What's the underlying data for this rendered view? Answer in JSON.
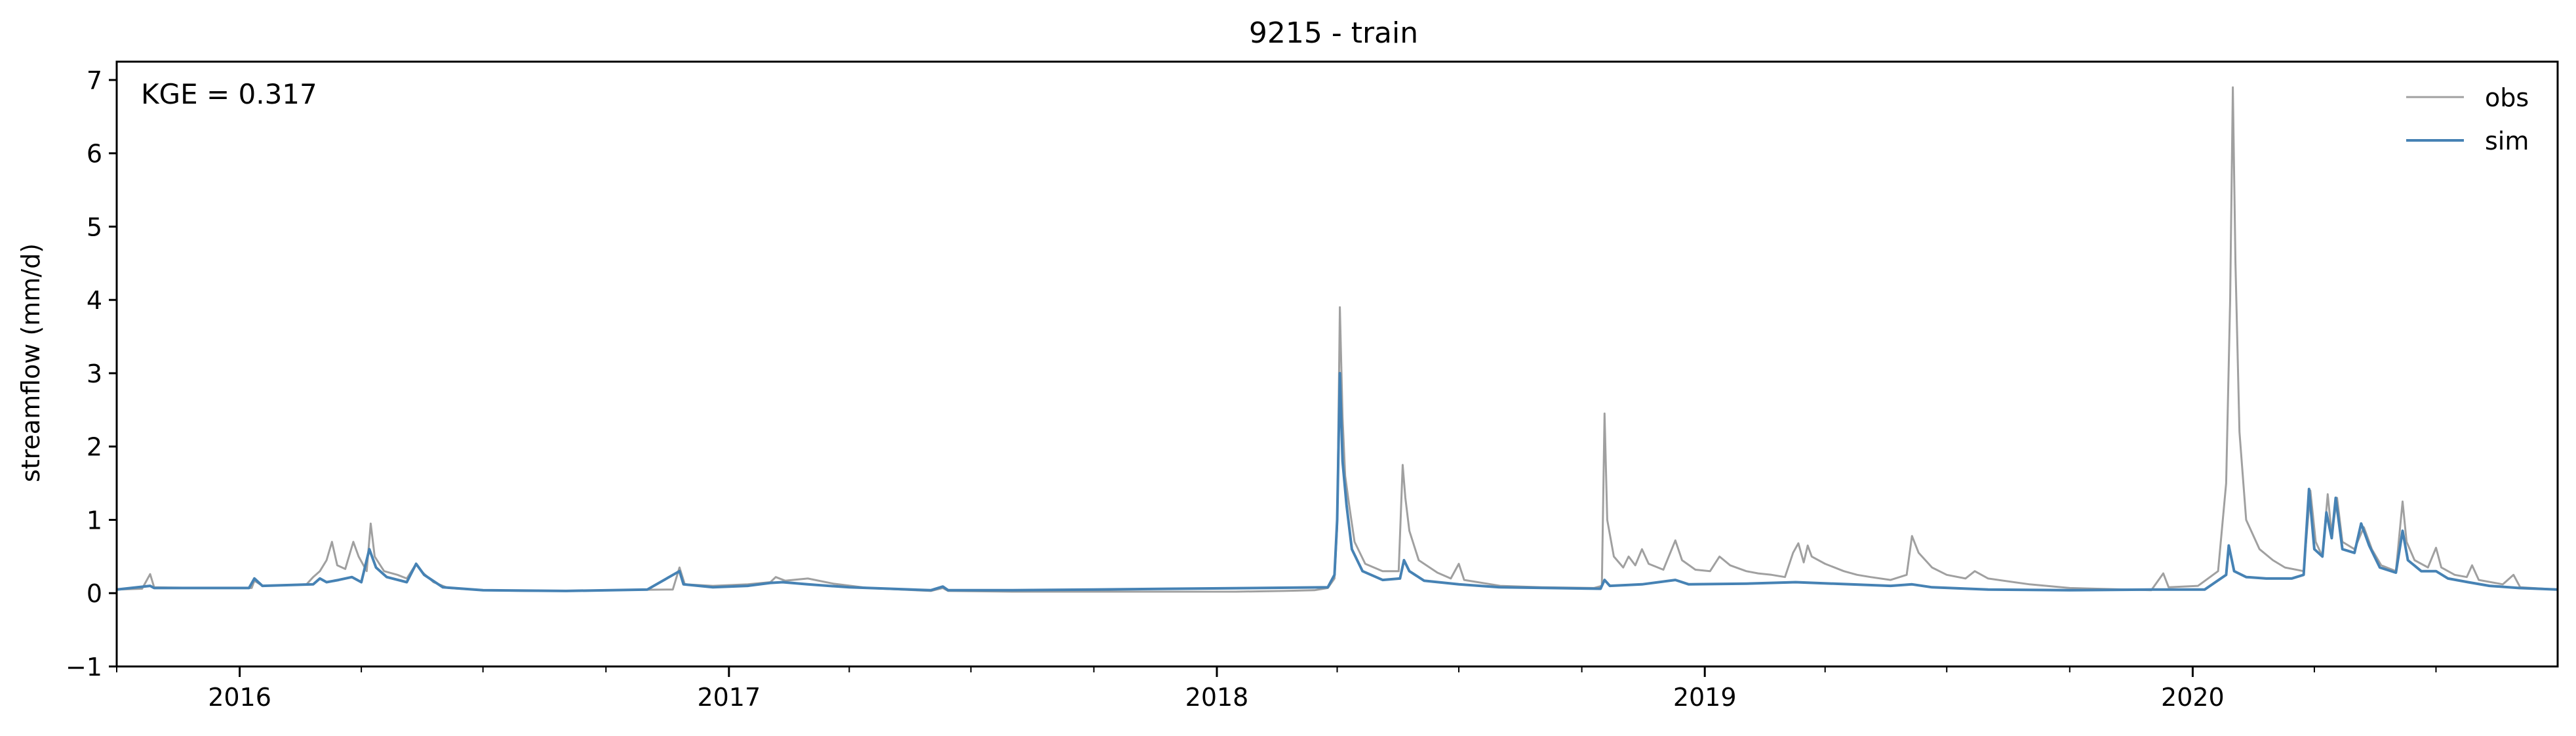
{
  "chart_data": {
    "type": "line",
    "title": "9215 - train",
    "xlabel": "",
    "ylabel": "streamflow (mm/d)",
    "xlim": [
      "2015-10-01",
      "2020-09-30"
    ],
    "ylim": [
      -1,
      7.25
    ],
    "yticks": [
      -1,
      0,
      1,
      2,
      3,
      4,
      5,
      6,
      7
    ],
    "xticks": [
      {
        "date": "2016-01-01",
        "label": "2016"
      },
      {
        "date": "2017-01-01",
        "label": "2017"
      },
      {
        "date": "2018-01-01",
        "label": "2018"
      },
      {
        "date": "2019-01-01",
        "label": "2019"
      },
      {
        "date": "2020-01-01",
        "label": "2020"
      }
    ],
    "annotation": "KGE = 0.317",
    "legend_position": "top-right",
    "grid": false,
    "series": [
      {
        "name": "obs",
        "color": "#a0a0a0",
        "points": [
          [
            "2015-10-01",
            0.05
          ],
          [
            "2015-10-20",
            0.06
          ],
          [
            "2015-10-26",
            0.26
          ],
          [
            "2015-10-29",
            0.08
          ],
          [
            "2015-12-01",
            0.07
          ],
          [
            "2016-01-10",
            0.07
          ],
          [
            "2016-01-12",
            0.17
          ],
          [
            "2016-01-18",
            0.1
          ],
          [
            "2016-02-20",
            0.12
          ],
          [
            "2016-02-25",
            0.22
          ],
          [
            "2016-03-01",
            0.3
          ],
          [
            "2016-03-06",
            0.45
          ],
          [
            "2016-03-10",
            0.7
          ],
          [
            "2016-03-14",
            0.38
          ],
          [
            "2016-03-20",
            0.33
          ],
          [
            "2016-03-26",
            0.7
          ],
          [
            "2016-03-30",
            0.5
          ],
          [
            "2016-04-05",
            0.3
          ],
          [
            "2016-04-08",
            0.95
          ],
          [
            "2016-04-11",
            0.5
          ],
          [
            "2016-04-18",
            0.3
          ],
          [
            "2016-04-28",
            0.25
          ],
          [
            "2016-05-05",
            0.2
          ],
          [
            "2016-05-12",
            0.4
          ],
          [
            "2016-05-17",
            0.28
          ],
          [
            "2016-05-25",
            0.15
          ],
          [
            "2016-06-05",
            0.07
          ],
          [
            "2016-07-01",
            0.04
          ],
          [
            "2016-08-01",
            0.03
          ],
          [
            "2016-09-01",
            0.03
          ],
          [
            "2016-10-01",
            0.04
          ],
          [
            "2016-11-20",
            0.05
          ],
          [
            "2016-11-25",
            0.35
          ],
          [
            "2016-11-29",
            0.12
          ],
          [
            "2016-12-20",
            0.1
          ],
          [
            "2017-01-15",
            0.12
          ],
          [
            "2017-02-01",
            0.15
          ],
          [
            "2017-02-05",
            0.22
          ],
          [
            "2017-02-12",
            0.17
          ],
          [
            "2017-03-01",
            0.2
          ],
          [
            "2017-03-20",
            0.13
          ],
          [
            "2017-04-15",
            0.07
          ],
          [
            "2017-06-01",
            0.03
          ],
          [
            "2017-06-10",
            0.07
          ],
          [
            "2017-06-14",
            0.03
          ],
          [
            "2017-08-01",
            0.02
          ],
          [
            "2017-10-01",
            0.02
          ],
          [
            "2017-12-01",
            0.02
          ],
          [
            "2018-01-15",
            0.02
          ],
          [
            "2018-02-20",
            0.03
          ],
          [
            "2018-03-15",
            0.04
          ],
          [
            "2018-03-25",
            0.07
          ],
          [
            "2018-03-30",
            0.2
          ],
          [
            "2018-04-01",
            0.9
          ],
          [
            "2018-04-03",
            3.9
          ],
          [
            "2018-04-05",
            2.4
          ],
          [
            "2018-04-07",
            1.6
          ],
          [
            "2018-04-10",
            1.2
          ],
          [
            "2018-04-14",
            0.7
          ],
          [
            "2018-04-22",
            0.4
          ],
          [
            "2018-05-05",
            0.3
          ],
          [
            "2018-05-17",
            0.3
          ],
          [
            "2018-05-20",
            1.75
          ],
          [
            "2018-05-22",
            1.3
          ],
          [
            "2018-05-25",
            0.85
          ],
          [
            "2018-06-01",
            0.45
          ],
          [
            "2018-06-15",
            0.28
          ],
          [
            "2018-06-25",
            0.2
          ],
          [
            "2018-07-01",
            0.4
          ],
          [
            "2018-07-05",
            0.18
          ],
          [
            "2018-08-01",
            0.1
          ],
          [
            "2018-09-01",
            0.08
          ],
          [
            "2018-10-10",
            0.07
          ],
          [
            "2018-10-16",
            0.1
          ],
          [
            "2018-10-18",
            2.45
          ],
          [
            "2018-10-20",
            1.0
          ],
          [
            "2018-10-25",
            0.5
          ],
          [
            "2018-11-01",
            0.35
          ],
          [
            "2018-11-05",
            0.5
          ],
          [
            "2018-11-10",
            0.38
          ],
          [
            "2018-11-15",
            0.6
          ],
          [
            "2018-11-20",
            0.4
          ],
          [
            "2018-12-01",
            0.32
          ],
          [
            "2018-12-10",
            0.72
          ],
          [
            "2018-12-15",
            0.45
          ],
          [
            "2018-12-25",
            0.32
          ],
          [
            "2019-01-05",
            0.3
          ],
          [
            "2019-01-12",
            0.5
          ],
          [
            "2019-01-20",
            0.38
          ],
          [
            "2019-02-01",
            0.3
          ],
          [
            "2019-02-10",
            0.27
          ],
          [
            "2019-02-20",
            0.25
          ],
          [
            "2019-03-02",
            0.22
          ],
          [
            "2019-03-08",
            0.55
          ],
          [
            "2019-03-12",
            0.68
          ],
          [
            "2019-03-16",
            0.42
          ],
          [
            "2019-03-19",
            0.65
          ],
          [
            "2019-03-22",
            0.5
          ],
          [
            "2019-04-01",
            0.4
          ],
          [
            "2019-04-15",
            0.3
          ],
          [
            "2019-04-25",
            0.25
          ],
          [
            "2019-05-05",
            0.22
          ],
          [
            "2019-05-20",
            0.18
          ],
          [
            "2019-06-01",
            0.25
          ],
          [
            "2019-06-05",
            0.78
          ],
          [
            "2019-06-10",
            0.55
          ],
          [
            "2019-06-20",
            0.35
          ],
          [
            "2019-07-01",
            0.25
          ],
          [
            "2019-07-15",
            0.2
          ],
          [
            "2019-07-22",
            0.3
          ],
          [
            "2019-08-01",
            0.2
          ],
          [
            "2019-09-01",
            0.12
          ],
          [
            "2019-10-01",
            0.07
          ],
          [
            "2019-12-01",
            0.04
          ],
          [
            "2019-12-10",
            0.27
          ],
          [
            "2019-12-14",
            0.08
          ],
          [
            "2020-01-05",
            0.1
          ],
          [
            "2020-01-20",
            0.3
          ],
          [
            "2020-01-26",
            1.5
          ],
          [
            "2020-01-29",
            4.0
          ],
          [
            "2020-01-31",
            6.9
          ],
          [
            "2020-02-02",
            4.5
          ],
          [
            "2020-02-05",
            2.2
          ],
          [
            "2020-02-10",
            1.0
          ],
          [
            "2020-02-20",
            0.6
          ],
          [
            "2020-03-01",
            0.45
          ],
          [
            "2020-03-10",
            0.35
          ],
          [
            "2020-03-24",
            0.3
          ],
          [
            "2020-03-29",
            1.4
          ],
          [
            "2020-04-02",
            0.7
          ],
          [
            "2020-04-07",
            0.5
          ],
          [
            "2020-04-11",
            1.35
          ],
          [
            "2020-04-14",
            0.8
          ],
          [
            "2020-04-18",
            1.3
          ],
          [
            "2020-04-22",
            0.7
          ],
          [
            "2020-05-01",
            0.6
          ],
          [
            "2020-05-08",
            0.9
          ],
          [
            "2020-05-14",
            0.6
          ],
          [
            "2020-05-21",
            0.38
          ],
          [
            "2020-06-01",
            0.3
          ],
          [
            "2020-06-06",
            1.25
          ],
          [
            "2020-06-09",
            0.7
          ],
          [
            "2020-06-15",
            0.45
          ],
          [
            "2020-06-25",
            0.35
          ],
          [
            "2020-07-01",
            0.62
          ],
          [
            "2020-07-05",
            0.35
          ],
          [
            "2020-07-15",
            0.25
          ],
          [
            "2020-07-24",
            0.22
          ],
          [
            "2020-07-28",
            0.38
          ],
          [
            "2020-08-02",
            0.18
          ],
          [
            "2020-08-20",
            0.12
          ],
          [
            "2020-08-28",
            0.25
          ],
          [
            "2020-09-02",
            0.08
          ],
          [
            "2020-09-30",
            0.05
          ]
        ]
      },
      {
        "name": "sim",
        "color": "#4682b4",
        "points": [
          [
            "2015-10-01",
            0.05
          ],
          [
            "2015-10-26",
            0.1
          ],
          [
            "2015-10-29",
            0.07
          ],
          [
            "2016-01-08",
            0.07
          ],
          [
            "2016-01-12",
            0.2
          ],
          [
            "2016-01-18",
            0.1
          ],
          [
            "2016-02-25",
            0.12
          ],
          [
            "2016-03-01",
            0.2
          ],
          [
            "2016-03-06",
            0.15
          ],
          [
            "2016-03-15",
            0.18
          ],
          [
            "2016-03-25",
            0.22
          ],
          [
            "2016-04-01",
            0.15
          ],
          [
            "2016-04-07",
            0.6
          ],
          [
            "2016-04-12",
            0.35
          ],
          [
            "2016-04-20",
            0.22
          ],
          [
            "2016-05-05",
            0.15
          ],
          [
            "2016-05-12",
            0.4
          ],
          [
            "2016-05-18",
            0.25
          ],
          [
            "2016-06-01",
            0.08
          ],
          [
            "2016-07-01",
            0.04
          ],
          [
            "2016-09-01",
            0.03
          ],
          [
            "2016-11-01",
            0.05
          ],
          [
            "2016-11-25",
            0.3
          ],
          [
            "2016-11-28",
            0.12
          ],
          [
            "2016-12-20",
            0.08
          ],
          [
            "2017-01-15",
            0.1
          ],
          [
            "2017-02-01",
            0.14
          ],
          [
            "2017-02-10",
            0.15
          ],
          [
            "2017-03-01",
            0.12
          ],
          [
            "2017-04-01",
            0.08
          ],
          [
            "2017-06-01",
            0.04
          ],
          [
            "2017-06-10",
            0.09
          ],
          [
            "2017-06-14",
            0.04
          ],
          [
            "2017-08-01",
            0.04
          ],
          [
            "2017-10-01",
            0.05
          ],
          [
            "2017-12-01",
            0.06
          ],
          [
            "2018-02-01",
            0.07
          ],
          [
            "2018-03-25",
            0.08
          ],
          [
            "2018-03-30",
            0.25
          ],
          [
            "2018-04-01",
            1.0
          ],
          [
            "2018-04-03",
            3.0
          ],
          [
            "2018-04-05",
            1.8
          ],
          [
            "2018-04-08",
            1.2
          ],
          [
            "2018-04-12",
            0.6
          ],
          [
            "2018-04-20",
            0.3
          ],
          [
            "2018-05-05",
            0.18
          ],
          [
            "2018-05-18",
            0.2
          ],
          [
            "2018-05-21",
            0.45
          ],
          [
            "2018-05-25",
            0.3
          ],
          [
            "2018-06-05",
            0.17
          ],
          [
            "2018-07-01",
            0.12
          ],
          [
            "2018-08-01",
            0.08
          ],
          [
            "2018-10-15",
            0.06
          ],
          [
            "2018-10-18",
            0.18
          ],
          [
            "2018-10-22",
            0.1
          ],
          [
            "2018-11-15",
            0.12
          ],
          [
            "2018-12-10",
            0.18
          ],
          [
            "2018-12-20",
            0.12
          ],
          [
            "2019-02-01",
            0.13
          ],
          [
            "2019-03-10",
            0.15
          ],
          [
            "2019-04-20",
            0.12
          ],
          [
            "2019-05-20",
            0.1
          ],
          [
            "2019-06-05",
            0.12
          ],
          [
            "2019-06-20",
            0.08
          ],
          [
            "2019-08-01",
            0.05
          ],
          [
            "2019-10-01",
            0.04
          ],
          [
            "2019-12-01",
            0.05
          ],
          [
            "2020-01-10",
            0.05
          ],
          [
            "2020-01-26",
            0.25
          ],
          [
            "2020-01-28",
            0.65
          ],
          [
            "2020-02-01",
            0.3
          ],
          [
            "2020-02-10",
            0.22
          ],
          [
            "2020-02-25",
            0.2
          ],
          [
            "2020-03-15",
            0.2
          ],
          [
            "2020-03-24",
            0.25
          ],
          [
            "2020-03-28",
            1.42
          ],
          [
            "2020-04-01",
            0.6
          ],
          [
            "2020-04-07",
            0.5
          ],
          [
            "2020-04-10",
            1.1
          ],
          [
            "2020-04-14",
            0.75
          ],
          [
            "2020-04-17",
            1.3
          ],
          [
            "2020-04-22",
            0.6
          ],
          [
            "2020-05-01",
            0.55
          ],
          [
            "2020-05-06",
            0.95
          ],
          [
            "2020-05-12",
            0.65
          ],
          [
            "2020-05-20",
            0.35
          ],
          [
            "2020-06-01",
            0.28
          ],
          [
            "2020-06-06",
            0.85
          ],
          [
            "2020-06-10",
            0.45
          ],
          [
            "2020-06-20",
            0.3
          ],
          [
            "2020-07-01",
            0.3
          ],
          [
            "2020-07-10",
            0.2
          ],
          [
            "2020-07-25",
            0.15
          ],
          [
            "2020-08-10",
            0.1
          ],
          [
            "2020-09-01",
            0.07
          ],
          [
            "2020-09-30",
            0.05
          ]
        ]
      }
    ]
  }
}
